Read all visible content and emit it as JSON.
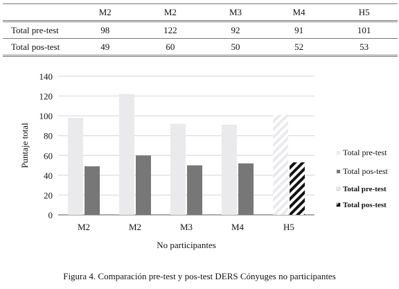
{
  "table": {
    "header": [
      "",
      "M2",
      "M2",
      "M3",
      "M4",
      "H5"
    ],
    "rows": [
      {
        "label": "Total pre-test",
        "values": [
          "98",
          "122",
          "92",
          "91",
          "101"
        ]
      },
      {
        "label": "Total pos-test",
        "values": [
          "49",
          "60",
          "50",
          "52",
          "53"
        ]
      }
    ]
  },
  "chart_data": {
    "type": "bar",
    "categories": [
      "M2",
      "M2",
      "M3",
      "M4",
      "H5"
    ],
    "series": [
      {
        "name": "Total pre-test",
        "values": [
          98,
          122,
          92,
          91,
          101
        ],
        "color": "#eaeaed"
      },
      {
        "name": "Total pos-test",
        "values": [
          49,
          60,
          50,
          52,
          53
        ],
        "color": "#777777"
      }
    ],
    "highlight_category": "H5",
    "highlight_legend": [
      "Total pre-test",
      "Total pos-test"
    ],
    "xlabel": "No participantes",
    "ylabel": "Puntaje total",
    "ylim": [
      0,
      140
    ],
    "yticks": [
      0,
      20,
      40,
      60,
      80,
      100,
      120,
      140
    ],
    "grid": true,
    "legend_position": "right"
  },
  "caption": "Figura 4. Comparación pre-test y pos-test DERS Cónyuges no participantes"
}
